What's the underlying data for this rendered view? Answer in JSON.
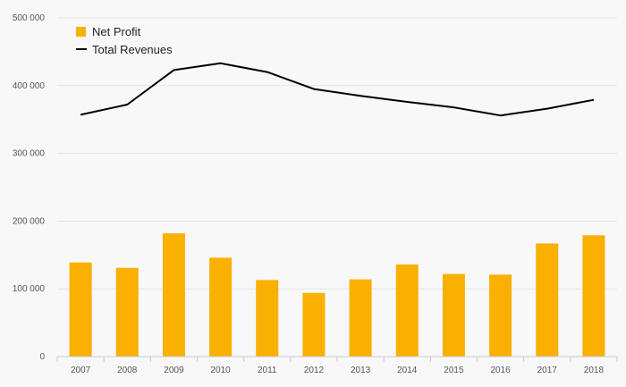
{
  "chart_data": {
    "type": "bar",
    "title": "",
    "xlabel": "",
    "ylabel": "",
    "categories": [
      "2007",
      "2008",
      "2009",
      "2010",
      "2011",
      "2012",
      "2013",
      "2014",
      "2015",
      "2016",
      "2017",
      "2018"
    ],
    "yticks": [
      "0",
      "100 000",
      "200 000",
      "300 000",
      "400 000",
      "500 000"
    ],
    "ylim": [
      0,
      500000
    ],
    "grid": true,
    "legend_position": "top-left",
    "series": [
      {
        "name": "Net Profit",
        "type": "bar",
        "color": "#f9b000",
        "values": [
          139000,
          131000,
          182000,
          146000,
          113000,
          94000,
          114000,
          136000,
          122000,
          121000,
          167000,
          179000
        ]
      },
      {
        "name": "Total Revenues",
        "type": "line",
        "color": "#000000",
        "values": [
          357000,
          372000,
          423000,
          433000,
          420000,
          395000,
          385000,
          376000,
          368000,
          356000,
          366000,
          379000
        ]
      }
    ]
  }
}
